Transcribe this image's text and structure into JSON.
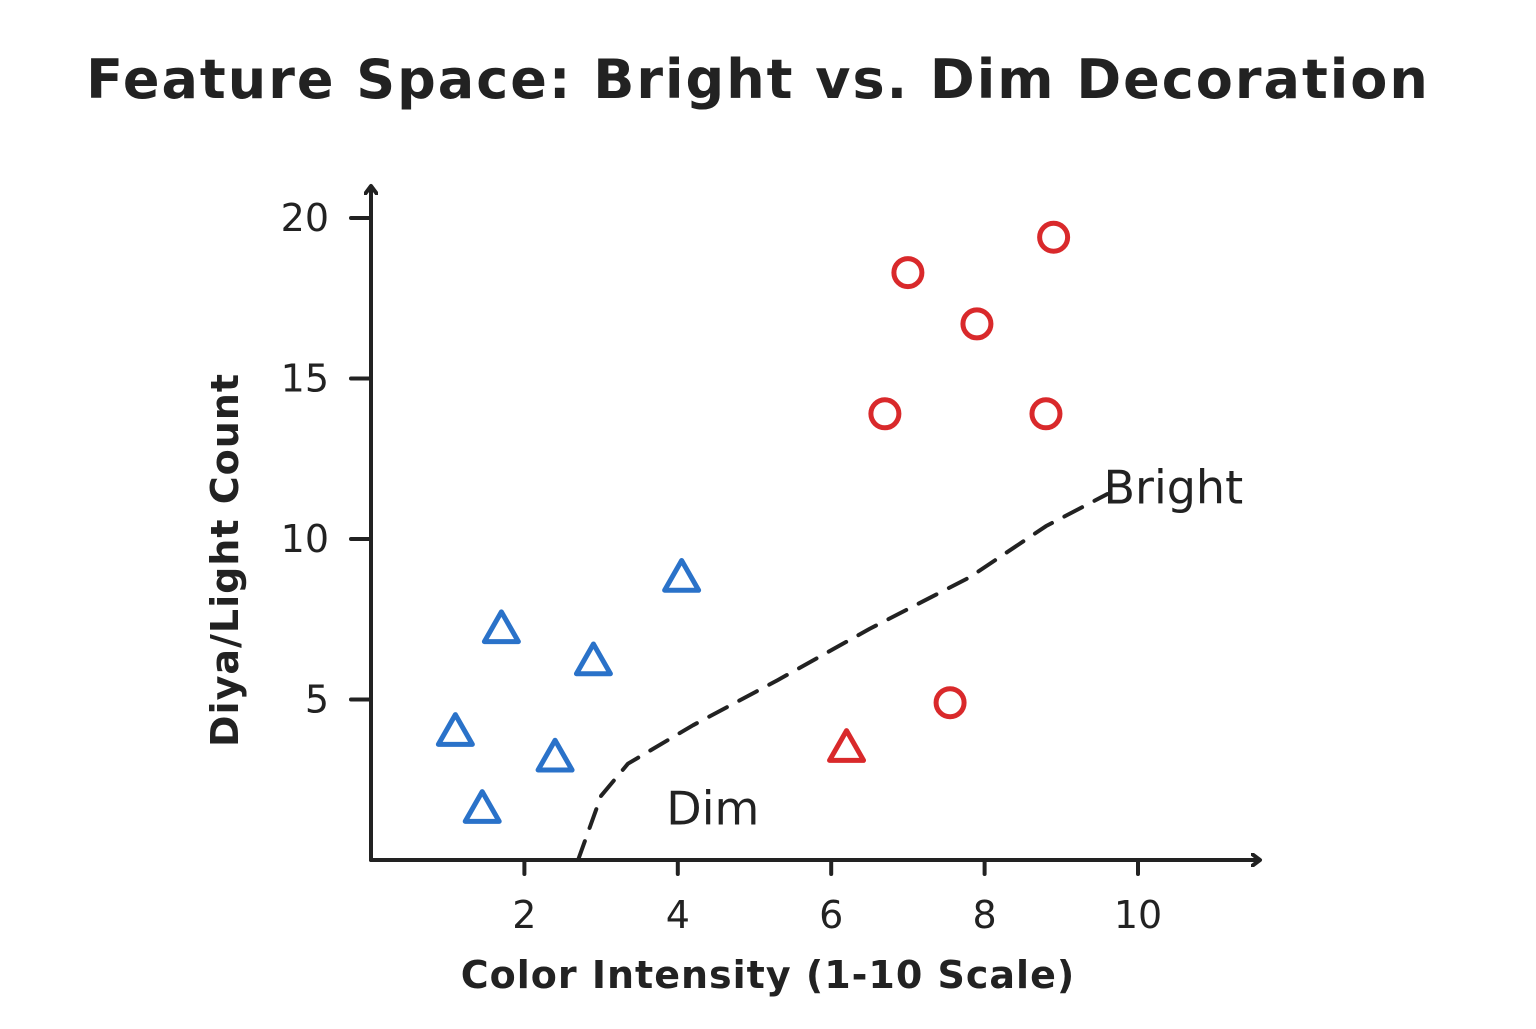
{
  "chart_data": {
    "type": "scatter",
    "title": "Feature Space: Bright vs. Dim Decoration",
    "xlabel": "Color Intensity (1-10 Scale)",
    "ylabel": "Diya/Light Count",
    "xlim": [
      0,
      11.6
    ],
    "ylim": [
      0,
      21.5
    ],
    "xticks": [
      2,
      4,
      6,
      8,
      10
    ],
    "yticks": [
      5,
      10,
      15,
      20
    ],
    "grid": false,
    "legend": "none",
    "series": [
      {
        "marker": "triangle",
        "color": "#2a72c9",
        "points": [
          {
            "x": 1.1,
            "y": 4.0
          },
          {
            "x": 1.45,
            "y": 1.6
          },
          {
            "x": 1.7,
            "y": 7.2
          },
          {
            "x": 2.4,
            "y": 3.2
          },
          {
            "x": 2.9,
            "y": 6.2
          },
          {
            "x": 4.05,
            "y": 8.8
          }
        ]
      },
      {
        "marker": "triangle",
        "color": "#d9292b",
        "points": [
          {
            "x": 6.2,
            "y": 3.5
          }
        ]
      },
      {
        "marker": "circle",
        "color": "#d9292b",
        "points": [
          {
            "x": 6.7,
            "y": 13.9
          },
          {
            "x": 7.0,
            "y": 18.3
          },
          {
            "x": 7.9,
            "y": 16.7
          },
          {
            "x": 8.8,
            "y": 13.9
          },
          {
            "x": 8.9,
            "y": 19.4
          },
          {
            "x": 7.55,
            "y": 4.9
          }
        ]
      }
    ],
    "decision_boundary": {
      "style": "dashed",
      "points": [
        {
          "x": 2.7,
          "y": 0
        },
        {
          "x": 3.0,
          "y": 2.0
        },
        {
          "x": 3.35,
          "y": 3.0
        },
        {
          "x": 4.2,
          "y": 4.2
        },
        {
          "x": 5.3,
          "y": 5.6
        },
        {
          "x": 6.5,
          "y": 7.2
        },
        {
          "x": 7.8,
          "y": 8.8
        },
        {
          "x": 8.8,
          "y": 10.4
        },
        {
          "x": 9.6,
          "y": 11.4
        }
      ]
    },
    "annotations": [
      {
        "text": "Bright",
        "x": 9.55,
        "y": 11.1
      },
      {
        "text": "Dim",
        "x": 3.85,
        "y": 1.1
      }
    ]
  }
}
